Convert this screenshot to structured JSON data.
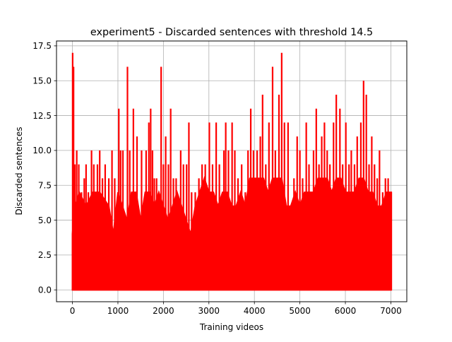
{
  "chart_data": {
    "type": "line",
    "title": "experiment5 - Discarded sentences with threshold 14.5",
    "xlabel": "Training videos",
    "ylabel": "Discarded sentences",
    "xlim": [
      -350,
      7350
    ],
    "ylim": [
      -0.85,
      17.85
    ],
    "xticks": [
      0,
      1000,
      2000,
      3000,
      4000,
      5000,
      6000,
      7000
    ],
    "xtick_labels": [
      "0",
      "1000",
      "2000",
      "3000",
      "4000",
      "5000",
      "6000",
      "7000"
    ],
    "yticks": [
      0.0,
      2.5,
      5.0,
      7.5,
      10.0,
      12.5,
      15.0,
      17.5
    ],
    "ytick_labels": [
      "0.0",
      "2.5",
      "5.0",
      "7.5",
      "10.0",
      "12.5",
      "15.0",
      "17.5"
    ],
    "grid": true,
    "series_color": "#ff0000",
    "x_min": 0,
    "x_max": 7010,
    "y_min": 0,
    "baseline_band": [
      [
        0,
        4
      ],
      [
        60,
        6
      ],
      [
        150,
        7
      ],
      [
        300,
        6
      ],
      [
        450,
        7
      ],
      [
        600,
        7
      ],
      [
        800,
        6
      ],
      [
        900,
        4
      ],
      [
        1000,
        7
      ],
      [
        1100,
        6
      ],
      [
        1200,
        5
      ],
      [
        1300,
        7
      ],
      [
        1400,
        7
      ],
      [
        1500,
        5
      ],
      [
        1600,
        7
      ],
      [
        1700,
        7
      ],
      [
        1800,
        6
      ],
      [
        1900,
        7
      ],
      [
        2000,
        6
      ],
      [
        2100,
        5
      ],
      [
        2200,
        6
      ],
      [
        2300,
        7
      ],
      [
        2400,
        6
      ],
      [
        2500,
        5
      ],
      [
        2600,
        4
      ],
      [
        2700,
        6
      ],
      [
        2800,
        7
      ],
      [
        2900,
        8
      ],
      [
        3000,
        7
      ],
      [
        3100,
        7
      ],
      [
        3200,
        6
      ],
      [
        3300,
        7
      ],
      [
        3400,
        7
      ],
      [
        3500,
        6
      ],
      [
        3600,
        6
      ],
      [
        3700,
        7
      ],
      [
        3800,
        6
      ],
      [
        3900,
        8
      ],
      [
        4000,
        8
      ],
      [
        4100,
        8
      ],
      [
        4200,
        8
      ],
      [
        4300,
        7
      ],
      [
        4400,
        8
      ],
      [
        4500,
        8
      ],
      [
        4600,
        8
      ],
      [
        4700,
        6
      ],
      [
        4800,
        6
      ],
      [
        4900,
        7
      ],
      [
        5000,
        6
      ],
      [
        5100,
        7
      ],
      [
        5200,
        7
      ],
      [
        5300,
        7
      ],
      [
        5400,
        8
      ],
      [
        5500,
        8
      ],
      [
        5600,
        8
      ],
      [
        5700,
        7
      ],
      [
        5800,
        8
      ],
      [
        5900,
        8
      ],
      [
        6000,
        7
      ],
      [
        6100,
        7
      ],
      [
        6200,
        7
      ],
      [
        6300,
        8
      ],
      [
        6400,
        8
      ],
      [
        6500,
        7
      ],
      [
        6600,
        7
      ],
      [
        6700,
        6
      ],
      [
        6800,
        6
      ],
      [
        6900,
        7
      ],
      [
        7010,
        7
      ]
    ],
    "peaks": [
      [
        5,
        17
      ],
      [
        25,
        16
      ],
      [
        55,
        9
      ],
      [
        95,
        10
      ],
      [
        140,
        9
      ],
      [
        200,
        7
      ],
      [
        260,
        8
      ],
      [
        300,
        9
      ],
      [
        350,
        7
      ],
      [
        420,
        10
      ],
      [
        470,
        9
      ],
      [
        550,
        9
      ],
      [
        600,
        10
      ],
      [
        660,
        8
      ],
      [
        720,
        9
      ],
      [
        800,
        8
      ],
      [
        870,
        10
      ],
      [
        930,
        8
      ],
      [
        1020,
        13
      ],
      [
        1060,
        10
      ],
      [
        1110,
        10
      ],
      [
        1210,
        16
      ],
      [
        1260,
        10
      ],
      [
        1340,
        13
      ],
      [
        1420,
        11
      ],
      [
        1520,
        10
      ],
      [
        1620,
        10
      ],
      [
        1680,
        12
      ],
      [
        1720,
        13
      ],
      [
        1760,
        10
      ],
      [
        1800,
        8
      ],
      [
        1850,
        8
      ],
      [
        1950,
        16
      ],
      [
        2000,
        9
      ],
      [
        2050,
        11
      ],
      [
        2110,
        9
      ],
      [
        2160,
        13
      ],
      [
        2220,
        8
      ],
      [
        2280,
        8
      ],
      [
        2380,
        10
      ],
      [
        2440,
        9
      ],
      [
        2510,
        9
      ],
      [
        2560,
        12
      ],
      [
        2620,
        7
      ],
      [
        2700,
        7
      ],
      [
        2780,
        8
      ],
      [
        2850,
        9
      ],
      [
        2920,
        9
      ],
      [
        3010,
        12
      ],
      [
        3080,
        9
      ],
      [
        3160,
        12
      ],
      [
        3230,
        9
      ],
      [
        3330,
        10
      ],
      [
        3370,
        12
      ],
      [
        3430,
        10
      ],
      [
        3510,
        12
      ],
      [
        3570,
        10
      ],
      [
        3640,
        8
      ],
      [
        3720,
        9
      ],
      [
        3800,
        7
      ],
      [
        3860,
        10
      ],
      [
        3920,
        13
      ],
      [
        3980,
        10
      ],
      [
        4060,
        10
      ],
      [
        4130,
        11
      ],
      [
        4180,
        14
      ],
      [
        4250,
        9
      ],
      [
        4320,
        12
      ],
      [
        4400,
        16
      ],
      [
        4460,
        10
      ],
      [
        4540,
        14
      ],
      [
        4600,
        17
      ],
      [
        4660,
        12
      ],
      [
        4740,
        12
      ],
      [
        4800,
        6
      ],
      [
        4870,
        8
      ],
      [
        4940,
        11
      ],
      [
        5000,
        10
      ],
      [
        5060,
        8
      ],
      [
        5140,
        12
      ],
      [
        5200,
        9
      ],
      [
        5300,
        10
      ],
      [
        5360,
        13
      ],
      [
        5420,
        9
      ],
      [
        5480,
        11
      ],
      [
        5540,
        12
      ],
      [
        5600,
        10
      ],
      [
        5660,
        9
      ],
      [
        5740,
        12
      ],
      [
        5800,
        14
      ],
      [
        5880,
        13
      ],
      [
        5940,
        9
      ],
      [
        6010,
        12
      ],
      [
        6080,
        9
      ],
      [
        6130,
        10
      ],
      [
        6200,
        9
      ],
      [
        6260,
        11
      ],
      [
        6340,
        12
      ],
      [
        6400,
        15
      ],
      [
        6460,
        14
      ],
      [
        6520,
        9
      ],
      [
        6580,
        11
      ],
      [
        6640,
        9
      ],
      [
        6700,
        8
      ],
      [
        6750,
        10
      ],
      [
        6820,
        7
      ],
      [
        6880,
        8
      ],
      [
        6940,
        8
      ],
      [
        7000,
        7
      ]
    ]
  }
}
